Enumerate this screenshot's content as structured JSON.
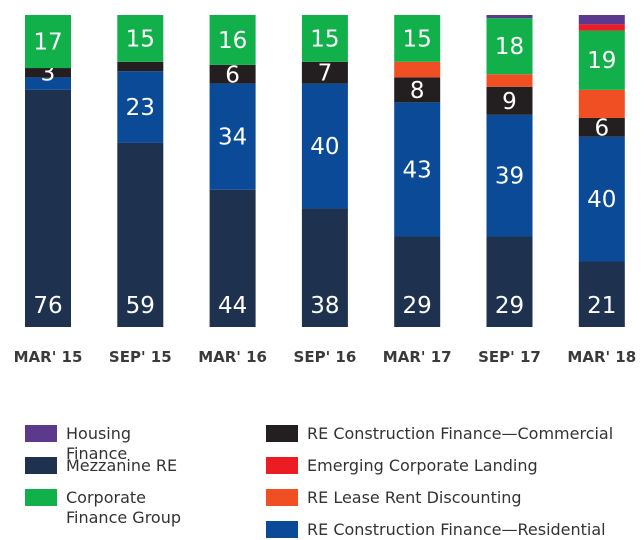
{
  "chart_data": {
    "type": "stacked-bar",
    "categories": [
      "MAR' 15",
      "SEP' 15",
      "MAR' 16",
      "SEP' 16",
      "MAR' 17",
      "SEP' 17",
      "MAR' 18"
    ],
    "ylim": [
      0,
      100
    ],
    "series": [
      {
        "name": "Mezzanine RE",
        "color": "#1e3250",
        "values": [
          76,
          59,
          44,
          38,
          29,
          29,
          21
        ],
        "value_labels": [
          "76",
          "59",
          "44",
          "38",
          "29",
          "29",
          "21"
        ]
      },
      {
        "name": "RE Construction Finance—Residential",
        "color": "#0b4a97",
        "values": [
          4,
          23,
          34,
          40,
          43,
          39,
          40
        ],
        "value_labels": [
          null,
          "23",
          "34",
          "40",
          "43",
          "39",
          "40"
        ]
      },
      {
        "name": "RE Construction Finance—Commercial",
        "color": "#231f20",
        "values": [
          3,
          3,
          6,
          7,
          8,
          9,
          6
        ],
        "value_labels": [
          "3",
          null,
          "6",
          "7",
          "8",
          "9",
          "6"
        ]
      },
      {
        "name": "RE Lease Rent Discounting",
        "color": "#f04e23",
        "values": [
          0,
          0,
          0,
          0,
          5,
          4,
          9
        ],
        "value_labels": [
          null,
          null,
          null,
          null,
          null,
          null,
          null
        ]
      },
      {
        "name": "Corporate Finance Group",
        "color": "#12b04b",
        "values": [
          17,
          15,
          16,
          15,
          15,
          18,
          19
        ],
        "value_labels": [
          "17",
          "15",
          "16",
          "15",
          "15",
          "18",
          "19"
        ]
      },
      {
        "name": "Emerging Corporate Landing",
        "color": "#ec1c24",
        "values": [
          0,
          0,
          0,
          0,
          0,
          0,
          2
        ],
        "value_labels": [
          null,
          null,
          null,
          null,
          null,
          null,
          null
        ]
      },
      {
        "name": "Housing Finance",
        "color": "#5b3a8e",
        "values": [
          0,
          0,
          0,
          0,
          0,
          1,
          3
        ],
        "value_labels": [
          null,
          null,
          null,
          null,
          null,
          null,
          null
        ]
      }
    ]
  }
}
